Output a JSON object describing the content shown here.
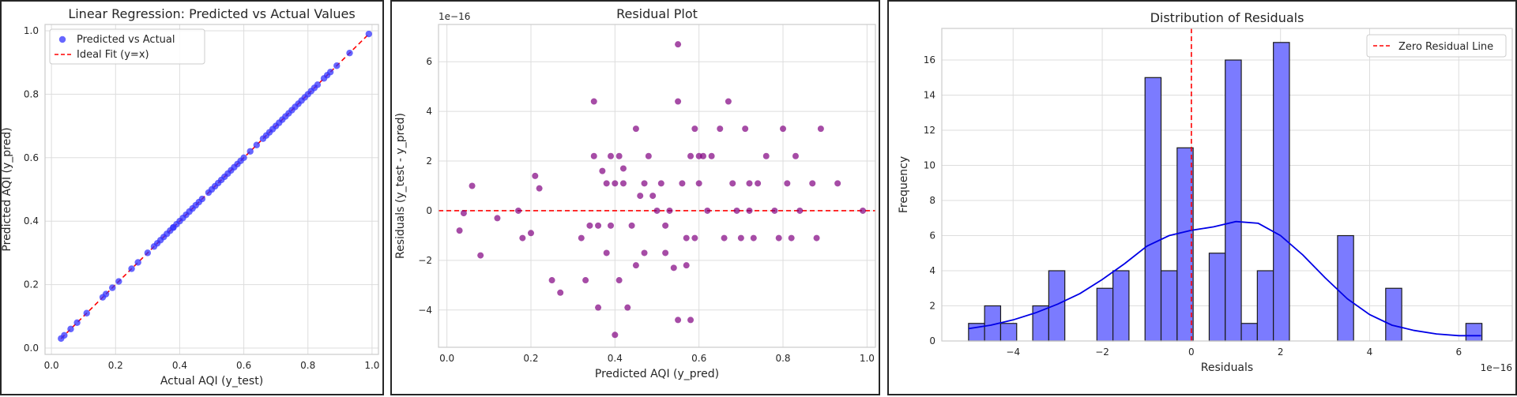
{
  "chart_data": [
    {
      "type": "scatter",
      "title": "Linear Regression: Predicted vs Actual Values",
      "xlabel": "Actual AQI (y_test)",
      "ylabel": "Predicted AQI (y_pred)",
      "xlim": [
        -0.02,
        1.02
      ],
      "ylim": [
        -0.02,
        1.02
      ],
      "xticks": [
        "0.0",
        "0.2",
        "0.4",
        "0.6",
        "0.8",
        "1.0"
      ],
      "yticks": [
        "0.0",
        "0.2",
        "0.4",
        "0.6",
        "0.8",
        "1.0"
      ],
      "grid": true,
      "legend_position": "top-left",
      "series": [
        {
          "name": "Predicted vs Actual",
          "kind": "scatter",
          "color": "#3333ff",
          "x": [
            0.03,
            0.04,
            0.06,
            0.08,
            0.11,
            0.16,
            0.17,
            0.19,
            0.21,
            0.25,
            0.27,
            0.3,
            0.32,
            0.33,
            0.34,
            0.35,
            0.36,
            0.37,
            0.38,
            0.38,
            0.39,
            0.4,
            0.41,
            0.42,
            0.43,
            0.44,
            0.45,
            0.46,
            0.47,
            0.49,
            0.5,
            0.51,
            0.52,
            0.53,
            0.54,
            0.55,
            0.56,
            0.57,
            0.58,
            0.59,
            0.6,
            0.62,
            0.64,
            0.66,
            0.67,
            0.68,
            0.69,
            0.7,
            0.71,
            0.72,
            0.73,
            0.74,
            0.75,
            0.76,
            0.77,
            0.78,
            0.79,
            0.8,
            0.81,
            0.82,
            0.83,
            0.85,
            0.86,
            0.87,
            0.89,
            0.93,
            0.99
          ],
          "y": [
            0.03,
            0.04,
            0.06,
            0.08,
            0.11,
            0.16,
            0.17,
            0.19,
            0.21,
            0.25,
            0.27,
            0.3,
            0.32,
            0.33,
            0.34,
            0.35,
            0.36,
            0.37,
            0.38,
            0.38,
            0.39,
            0.4,
            0.41,
            0.42,
            0.43,
            0.44,
            0.45,
            0.46,
            0.47,
            0.49,
            0.5,
            0.51,
            0.52,
            0.53,
            0.54,
            0.55,
            0.56,
            0.57,
            0.58,
            0.59,
            0.6,
            0.62,
            0.64,
            0.66,
            0.67,
            0.68,
            0.69,
            0.7,
            0.71,
            0.72,
            0.73,
            0.74,
            0.75,
            0.76,
            0.77,
            0.78,
            0.79,
            0.8,
            0.81,
            0.82,
            0.83,
            0.85,
            0.86,
            0.87,
            0.89,
            0.93,
            0.99
          ]
        },
        {
          "name": "Ideal Fit (y=x)",
          "kind": "line",
          "style": "dashed",
          "color": "#ff0000",
          "x": [
            0.03,
            0.99
          ],
          "y": [
            0.03,
            0.99
          ]
        }
      ]
    },
    {
      "type": "scatter",
      "title": "Residual Plot",
      "xlabel": "Predicted AQI (y_pred)",
      "ylabel": "Residuals (y_test - y_pred)",
      "offset_label": "1e−16",
      "xlim": [
        -0.02,
        1.02
      ],
      "ylim": [
        -5.5,
        7.5
      ],
      "xticks": [
        "0.0",
        "0.2",
        "0.4",
        "0.6",
        "0.8",
        "1.0"
      ],
      "yticks": [
        "−4",
        "−2",
        "0",
        "2",
        "4",
        "6"
      ],
      "grid": true,
      "series": [
        {
          "name": "",
          "kind": "scatter",
          "color": "#800080",
          "x": [
            0.03,
            0.04,
            0.06,
            0.08,
            0.12,
            0.17,
            0.18,
            0.2,
            0.21,
            0.22,
            0.25,
            0.27,
            0.32,
            0.33,
            0.34,
            0.35,
            0.35,
            0.36,
            0.36,
            0.37,
            0.38,
            0.38,
            0.39,
            0.39,
            0.4,
            0.4,
            0.41,
            0.41,
            0.42,
            0.42,
            0.43,
            0.44,
            0.45,
            0.45,
            0.46,
            0.47,
            0.47,
            0.48,
            0.49,
            0.5,
            0.51,
            0.52,
            0.52,
            0.53,
            0.54,
            0.55,
            0.55,
            0.55,
            0.56,
            0.57,
            0.57,
            0.58,
            0.58,
            0.59,
            0.59,
            0.6,
            0.6,
            0.61,
            0.62,
            0.63,
            0.65,
            0.66,
            0.67,
            0.68,
            0.69,
            0.7,
            0.71,
            0.72,
            0.72,
            0.73,
            0.74,
            0.76,
            0.78,
            0.79,
            0.8,
            0.81,
            0.82,
            0.83,
            0.84,
            0.87,
            0.88,
            0.89,
            0.93,
            0.99
          ],
          "y": [
            -0.8,
            -0.1,
            1.0,
            -1.8,
            -0.3,
            0.0,
            -1.1,
            -0.9,
            1.4,
            0.9,
            -2.8,
            -3.3,
            -1.1,
            -2.8,
            -0.6,
            4.4,
            2.2,
            -3.9,
            -0.6,
            1.6,
            -1.7,
            1.1,
            2.2,
            -0.6,
            1.1,
            -5.0,
            2.2,
            -2.8,
            1.7,
            1.1,
            -3.9,
            -0.6,
            3.3,
            -2.2,
            0.6,
            1.1,
            -1.7,
            2.2,
            0.6,
            0.0,
            1.1,
            -0.6,
            -1.7,
            0.0,
            -2.3,
            6.7,
            4.4,
            -4.4,
            1.1,
            -1.1,
            -2.2,
            2.2,
            -4.4,
            3.3,
            -1.1,
            1.1,
            2.2,
            2.2,
            0.0,
            2.2,
            3.3,
            -1.1,
            4.4,
            1.1,
            0.0,
            -1.1,
            3.3,
            1.1,
            0.0,
            -1.1,
            1.1,
            2.2,
            0.0,
            -1.1,
            3.3,
            1.1,
            -1.1,
            2.2,
            0.0,
            1.1,
            -1.1,
            3.3,
            1.1,
            0.0
          ]
        },
        {
          "name": "",
          "kind": "hline",
          "style": "dashed",
          "color": "#ff0000",
          "y": 0
        }
      ]
    },
    {
      "type": "histogram",
      "title": "Distribution of Residuals",
      "xlabel": "Residuals",
      "ylabel": "Frequency",
      "offset_label": "1e−16",
      "xlim": [
        -5.6,
        7.2
      ],
      "ylim": [
        0,
        17.8
      ],
      "xticks": [
        "−4",
        "−2",
        "0",
        "2",
        "4",
        "6"
      ],
      "yticks": [
        "0",
        "2",
        "4",
        "6",
        "8",
        "10",
        "12",
        "14",
        "16"
      ],
      "grid": true,
      "legend_position": "top-right",
      "bars": [
        {
          "x0": -5.0,
          "x1": -4.64,
          "count": 1
        },
        {
          "x0": -4.64,
          "x1": -4.28,
          "count": 2
        },
        {
          "x0": -4.28,
          "x1": -3.92,
          "count": 1
        },
        {
          "x0": -3.56,
          "x1": -3.2,
          "count": 2
        },
        {
          "x0": -3.2,
          "x1": -2.84,
          "count": 4
        },
        {
          "x0": -2.12,
          "x1": -1.76,
          "count": 3
        },
        {
          "x0": -1.76,
          "x1": -1.4,
          "count": 4
        },
        {
          "x0": -1.04,
          "x1": -0.68,
          "count": 15
        },
        {
          "x0": -0.68,
          "x1": -0.32,
          "count": 4
        },
        {
          "x0": -0.32,
          "x1": 0.04,
          "count": 11
        },
        {
          "x0": 0.4,
          "x1": 0.76,
          "count": 5
        },
        {
          "x0": 0.76,
          "x1": 1.12,
          "count": 16
        },
        {
          "x0": 1.12,
          "x1": 1.48,
          "count": 1
        },
        {
          "x0": 1.48,
          "x1": 1.84,
          "count": 4
        },
        {
          "x0": 1.84,
          "x1": 2.2,
          "count": 17
        },
        {
          "x0": 3.28,
          "x1": 3.64,
          "count": 6
        },
        {
          "x0": 4.36,
          "x1": 4.72,
          "count": 3
        },
        {
          "x0": 6.16,
          "x1": 6.52,
          "count": 1
        }
      ],
      "bar_color": "#7b7bff",
      "kde": {
        "color": "#0000e6",
        "x": [
          -5.0,
          -4.5,
          -4.0,
          -3.5,
          -3.0,
          -2.5,
          -2.0,
          -1.5,
          -1.0,
          -0.5,
          0.0,
          0.5,
          1.0,
          1.5,
          2.0,
          2.5,
          3.0,
          3.5,
          4.0,
          4.5,
          5.0,
          5.5,
          6.0,
          6.5
        ],
        "y": [
          0.7,
          0.9,
          1.2,
          1.6,
          2.1,
          2.7,
          3.5,
          4.4,
          5.4,
          6.0,
          6.3,
          6.5,
          6.8,
          6.7,
          6.0,
          4.9,
          3.6,
          2.4,
          1.5,
          0.9,
          0.6,
          0.4,
          0.3,
          0.3
        ]
      },
      "series": [
        {
          "name": "Zero Residual Line",
          "kind": "vline",
          "style": "dashed",
          "color": "#ff0000",
          "x": 0
        }
      ]
    }
  ]
}
